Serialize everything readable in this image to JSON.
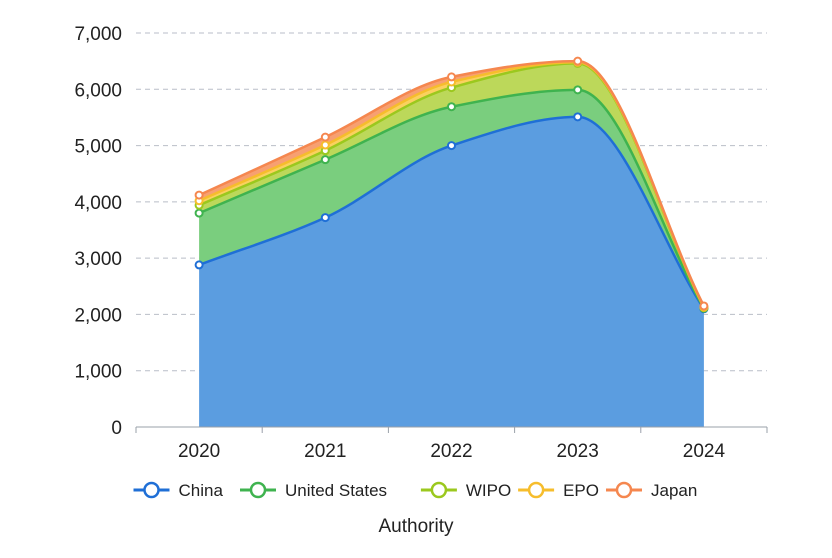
{
  "chart_data": {
    "type": "area",
    "stacked": true,
    "smooth": true,
    "title": "",
    "xlabel": "Authority",
    "ylabel": "",
    "categories": [
      "2020",
      "2021",
      "2022",
      "2023",
      "2024"
    ],
    "ylim": [
      0,
      7000
    ],
    "yticks": [
      "0",
      "1,000",
      "2,000",
      "3,000",
      "4,000",
      "5,000",
      "6,000",
      "7,000"
    ],
    "grid": true,
    "legend_position": "bottom",
    "series": [
      {
        "name": "China",
        "color": "#1f6fd6",
        "fill": "#5b9de0",
        "values": [
          2880,
          3720,
          5000,
          5510,
          2100
        ]
      },
      {
        "name": "United States",
        "color": "#3fb34f",
        "fill": "#7ace7e",
        "values": [
          920,
          1030,
          690,
          480,
          10
        ]
      },
      {
        "name": "WIPO",
        "color": "#9bc81e",
        "fill": "#bcd85a",
        "values": [
          140,
          160,
          340,
          470,
          10
        ]
      },
      {
        "name": "EPO",
        "color": "#f6bd2c",
        "fill": "#fad15f",
        "values": [
          80,
          100,
          100,
          20,
          10
        ]
      },
      {
        "name": "Japan",
        "color": "#f5874f",
        "fill": "#f7a071",
        "values": [
          100,
          140,
          90,
          20,
          20
        ]
      }
    ]
  }
}
